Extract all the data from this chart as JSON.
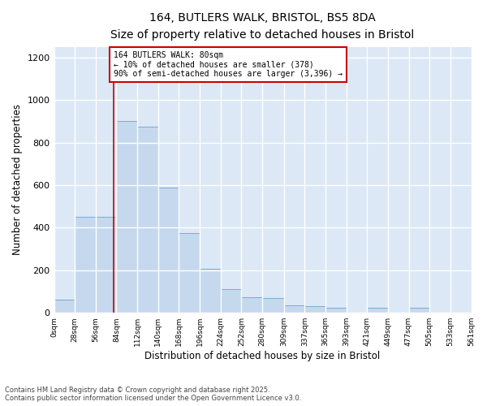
{
  "title1": "164, BUTLERS WALK, BRISTOL, BS5 8DA",
  "title2": "Size of property relative to detached houses in Bristol",
  "xlabel": "Distribution of detached houses by size in Bristol",
  "ylabel": "Number of detached properties",
  "bar_color": "#c5d8ee",
  "bar_edge_color": "#7aadd4",
  "background_color": "#dce8f5",
  "grid_color": "#ffffff",
  "property_line_x": 80,
  "property_line_color": "#cc0000",
  "annotation_text": "164 BUTLERS WALK: 80sqm\n← 10% of detached houses are smaller (378)\n90% of semi-detached houses are larger (3,396) →",
  "annotation_box_color": "#cc0000",
  "ylim": [
    0,
    1250
  ],
  "yticks": [
    0,
    200,
    400,
    600,
    800,
    1000,
    1200
  ],
  "bin_edges": [
    0,
    28,
    56,
    84,
    112,
    140,
    168,
    196,
    224,
    252,
    280,
    309,
    337,
    365,
    393,
    421,
    449,
    477,
    505,
    533,
    561
  ],
  "bar_heights": [
    62,
    450,
    450,
    900,
    875,
    590,
    375,
    205,
    110,
    75,
    70,
    35,
    30,
    25,
    0,
    25,
    0,
    22,
    0,
    0
  ],
  "footer_text": "Contains HM Land Registry data © Crown copyright and database right 2025.\nContains public sector information licensed under the Open Government Licence v3.0."
}
